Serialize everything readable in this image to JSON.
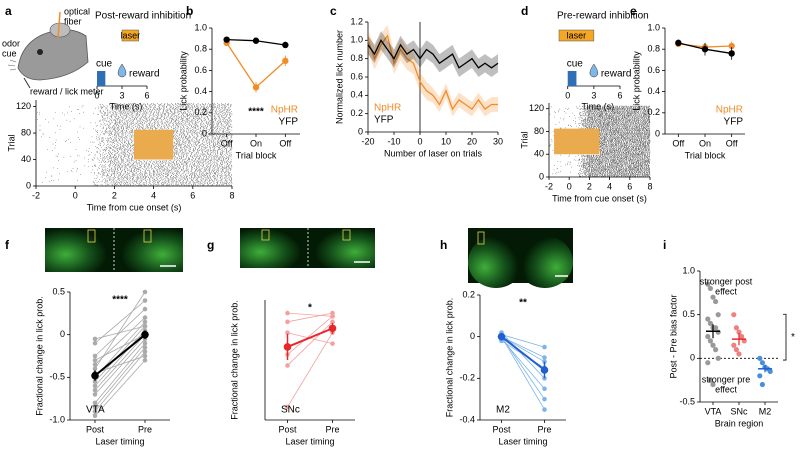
{
  "panel_labels": [
    "a",
    "b",
    "c",
    "d",
    "e",
    "f",
    "g",
    "h",
    "i"
  ],
  "illustration": {
    "fiber": [
      "optical",
      "fiber"
    ],
    "cue": [
      "odor",
      "cue"
    ],
    "meter": "reward / lick meter"
  },
  "chart_data": [
    {
      "type": "timeline",
      "title": "Post-reward inhibition",
      "xlim": [
        0,
        6
      ],
      "xticks": [
        0,
        3,
        6
      ],
      "xlabel": "Time (s)",
      "events": [
        {
          "label": "cue",
          "x": [
            0,
            1
          ],
          "color": "#2f6fb5"
        },
        {
          "label": "laser",
          "x": [
            3,
            5
          ],
          "color": "#f5a623"
        },
        {
          "label": "reward",
          "x": [
            3
          ],
          "color": "#7fb8e6"
        }
      ]
    },
    {
      "type": "raster",
      "xlabel": "Time from cue onset (s)",
      "ylabel": "Trial",
      "xlim": [
        -2,
        8
      ],
      "ylim": [
        0,
        130
      ],
      "xticks": [
        -2,
        0,
        2,
        4,
        6,
        8
      ],
      "yticks": [
        0,
        40,
        80,
        120
      ],
      "laser": {
        "x": [
          3,
          5
        ],
        "y": [
          40,
          85
        ],
        "color": "#e8a23c"
      }
    },
    {
      "type": "line",
      "xlabel": "Trial block",
      "ylabel": "Lick probability",
      "categories": [
        "Off",
        "On",
        "Off"
      ],
      "ylim": [
        0,
        1
      ],
      "yticks": [
        0,
        0.2,
        0.4,
        0.6,
        0.8,
        {
          "value": 1,
          "label": "1.0"
        }
      ],
      "legend": "lower right",
      "annotation": "****",
      "series": [
        {
          "name": "NpHR",
          "color": "#f28c28",
          "values": [
            0.86,
            0.44,
            0.69
          ],
          "errors": [
            0.03,
            0.05,
            0.05
          ]
        },
        {
          "name": "YFP",
          "color": "#000000",
          "values": [
            0.89,
            0.88,
            0.84
          ],
          "errors": [
            0.02,
            0.03,
            0.03
          ]
        }
      ]
    },
    {
      "type": "line",
      "xlabel": "Number of laser on trials",
      "ylabel": "Normalized lick number",
      "x": [
        -20,
        -17.5,
        -15,
        -12.5,
        -10,
        -7.5,
        -5,
        -2.5,
        0,
        2.5,
        5,
        7.5,
        10,
        12.5,
        15,
        17.5,
        20,
        22.5,
        25,
        27.5,
        30
      ],
      "xlim": [
        -20,
        30
      ],
      "xticks": [
        -20,
        -10,
        0,
        10,
        20,
        30
      ],
      "ylim": [
        0,
        1.2
      ],
      "yticks": [
        0,
        0.2,
        0.4,
        0.6,
        0.8,
        {
          "value": 1,
          "label": "1.0"
        },
        1.2
      ],
      "vline": 0,
      "legend": "lower left",
      "series": [
        {
          "name": "NpHR",
          "color": "#f28c28",
          "values": [
            1.0,
            0.8,
            0.95,
            1.05,
            0.75,
            0.9,
            0.8,
            0.75,
            0.55,
            0.45,
            0.4,
            0.3,
            0.45,
            0.25,
            0.35,
            0.3,
            0.25,
            0.35,
            0.25,
            0.3,
            0.3
          ],
          "errors": [
            0.12,
            0.12,
            0.12,
            0.12,
            0.12,
            0.12,
            0.12,
            0.12,
            0.1,
            0.1,
            0.08,
            0.08,
            0.08,
            0.08,
            0.08,
            0.08,
            0.08,
            0.08,
            0.08,
            0.08,
            0.08
          ]
        },
        {
          "name": "YFP",
          "color": "#000000",
          "values": [
            0.95,
            0.85,
            1.0,
            0.9,
            0.8,
            0.95,
            0.85,
            0.9,
            0.8,
            0.9,
            0.85,
            0.75,
            0.8,
            0.85,
            0.7,
            0.75,
            0.8,
            0.7,
            0.75,
            0.7,
            0.75
          ],
          "errors": [
            0.1,
            0.1,
            0.1,
            0.1,
            0.1,
            0.1,
            0.1,
            0.1,
            0.1,
            0.1,
            0.1,
            0.1,
            0.1,
            0.1,
            0.1,
            0.1,
            0.1,
            0.1,
            0.1,
            0.1,
            0.1
          ]
        }
      ]
    },
    {
      "type": "timeline",
      "title": "Pre-reward inhibition",
      "xlim": [
        -1,
        6
      ],
      "xticks": [
        0,
        3,
        6
      ],
      "xlabel": "Time (s)",
      "events": [
        {
          "label": "cue",
          "x": [
            0,
            1
          ],
          "color": "#2f6fb5"
        },
        {
          "label": "laser",
          "x": [
            -1,
            3
          ],
          "color": "#f5a623"
        },
        {
          "label": "reward",
          "x": [
            3
          ],
          "color": "#7fb8e6"
        }
      ]
    },
    {
      "type": "raster",
      "xlabel": "Time from cue onset (s)",
      "ylabel": "Trial",
      "xlim": [
        -2,
        8
      ],
      "ylim": [
        0,
        130
      ],
      "xticks": [
        -2,
        0,
        2,
        4,
        6,
        8
      ],
      "yticks": [
        0,
        40,
        80,
        120
      ],
      "laser": {
        "x": [
          -1.5,
          3
        ],
        "y": [
          40,
          85
        ],
        "color": "#e8a23c"
      }
    },
    {
      "type": "line",
      "xlabel": "Trial block",
      "ylabel": "Lick probability",
      "categories": [
        "Off",
        "On",
        "Off"
      ],
      "ylim": [
        0,
        1
      ],
      "yticks": [
        0,
        0.2,
        0.4,
        0.6,
        0.8,
        {
          "value": 1,
          "label": "1.0"
        }
      ],
      "legend": "lower right",
      "series": [
        {
          "name": "NpHR",
          "color": "#f28c28",
          "values": [
            0.85,
            0.82,
            0.83
          ],
          "errors": [
            0.02,
            0.04,
            0.04
          ]
        },
        {
          "name": "YFP",
          "color": "#000000",
          "values": [
            0.86,
            0.8,
            0.76
          ],
          "errors": [
            0.03,
            0.06,
            0.06
          ]
        }
      ]
    },
    {
      "type": "paired",
      "xlabel": "Laser timing",
      "ylabel": "Fractional change in lick prob.",
      "categories": [
        "Post",
        "Pre"
      ],
      "ylim": [
        -1,
        0.5
      ],
      "yticks": [
        {
          "value": -1,
          "label": "-1.0"
        },
        -0.5,
        0,
        0.5
      ],
      "annotation": "****",
      "region": "VTA",
      "series": [
        {
          "color": "#aaaaaa",
          "values": [
            -0.95,
            -0.3
          ]
        },
        {
          "color": "#aaaaaa",
          "values": [
            -0.9,
            -0.2
          ]
        },
        {
          "color": "#aaaaaa",
          "values": [
            -0.85,
            -0.15
          ]
        },
        {
          "color": "#aaaaaa",
          "values": [
            -0.8,
            -0.1
          ]
        },
        {
          "color": "#aaaaaa",
          "values": [
            -0.7,
            -0.05
          ]
        },
        {
          "color": "#aaaaaa",
          "values": [
            -0.65,
            0
          ]
        },
        {
          "color": "#aaaaaa",
          "values": [
            -0.6,
            0.05
          ]
        },
        {
          "color": "#aaaaaa",
          "values": [
            -0.55,
            0.1
          ]
        },
        {
          "color": "#aaaaaa",
          "values": [
            -0.5,
            0.15
          ]
        },
        {
          "color": "#aaaaaa",
          "values": [
            -0.45,
            -0.25
          ]
        },
        {
          "color": "#aaaaaa",
          "values": [
            -0.4,
            0.5
          ]
        },
        {
          "color": "#aaaaaa",
          "values": [
            -0.35,
            0.2
          ]
        },
        {
          "color": "#aaaaaa",
          "values": [
            -0.3,
            0
          ]
        },
        {
          "color": "#aaaaaa",
          "values": [
            -0.25,
            0.3
          ]
        },
        {
          "color": "#aaaaaa",
          "values": [
            -0.1,
            0.4
          ]
        },
        {
          "color": "#aaaaaa",
          "values": [
            -0.05,
            0.1
          ]
        }
      ],
      "mean": {
        "color": "#000000",
        "values": [
          -0.48,
          0
        ],
        "errors": [
          0.06,
          0.05
        ]
      }
    },
    {
      "type": "paired",
      "xlabel": "Laser timing",
      "ylabel": "Fractional change in lick prob.",
      "categories": [
        "Post",
        "Pre"
      ],
      "ylim": [
        -1,
        0.1
      ],
      "annotation": "*",
      "region": "SNc",
      "series": [
        {
          "color": "#f4a0a0",
          "values": [
            -0.88,
            -0.2
          ]
        },
        {
          "color": "#f4a0a0",
          "values": [
            -0.5,
            -0.1
          ]
        },
        {
          "color": "#f4a0a0",
          "values": [
            -0.4,
            -0.05
          ]
        },
        {
          "color": "#f4a0a0",
          "values": [
            -0.2,
            -0.3
          ]
        },
        {
          "color": "#f4a0a0",
          "values": [
            -0.1,
            -0.02
          ]
        },
        {
          "color": "#f4a0a0",
          "values": [
            -0.02,
            -0.05
          ]
        }
      ],
      "mean": {
        "color": "#e8262b",
        "values": [
          -0.33,
          -0.16
        ],
        "errors": [
          0.12,
          0.05
        ]
      }
    },
    {
      "type": "paired",
      "xlabel": "Laser timing",
      "ylabel": "Fractional change in lick prob.",
      "categories": [
        "Post",
        "Pre"
      ],
      "ylim": [
        -0.4,
        0.2
      ],
      "yticks": [
        -0.4,
        -0.2,
        0,
        0.2
      ],
      "annotation": "**",
      "region": "M2",
      "series": [
        {
          "color": "#7db4ea",
          "values": [
            0,
            -0.35
          ]
        },
        {
          "color": "#7db4ea",
          "values": [
            0,
            -0.3
          ]
        },
        {
          "color": "#7db4ea",
          "values": [
            0.02,
            -0.2
          ]
        },
        {
          "color": "#7db4ea",
          "values": [
            -0.02,
            -0.15
          ]
        },
        {
          "color": "#7db4ea",
          "values": [
            0,
            -0.1
          ]
        },
        {
          "color": "#7db4ea",
          "values": [
            0.01,
            -0.05
          ]
        },
        {
          "color": "#7db4ea",
          "values": [
            0,
            -0.12
          ]
        },
        {
          "color": "#7db4ea",
          "values": [
            -0.01,
            -0.25
          ]
        }
      ],
      "mean": {
        "color": "#1f5fd0",
        "values": [
          0,
          -0.16
        ],
        "errors": [
          0.01,
          0.04
        ]
      }
    },
    {
      "type": "strip",
      "xlabel": "Brain region",
      "ylabel": "Post - Pre bias factor",
      "categories": [
        "VTA",
        "SNc",
        "M2"
      ],
      "ylim": [
        -0.5,
        1
      ],
      "yticks": [
        -0.5,
        0,
        0.5,
        {
          "value": 1,
          "label": "1.0"
        }
      ],
      "hline": 0,
      "upper_note": [
        "stronger post",
        "effect"
      ],
      "lower_note": [
        "stronger pre",
        "effect"
      ],
      "sig": "*",
      "groups": [
        {
          "color": "#999999",
          "values": [
            0.85,
            0.8,
            0.7,
            0.65,
            0.5,
            0.45,
            0.4,
            0.35,
            0.35,
            0.3,
            0.25,
            0.2,
            0.15,
            0.1,
            0,
            -0.05,
            -0.25,
            -0.3
          ],
          "mean": 0.31,
          "error": 0.08,
          "mean_color": "#000000"
        },
        {
          "color": "#f08080",
          "values": [
            0.5,
            0.35,
            0.3,
            0.25,
            0.2,
            0.15,
            0.1,
            0.05
          ],
          "mean": 0.22,
          "error": 0.07,
          "mean_color": "#e8262b"
        },
        {
          "color": "#4a90d9",
          "values": [
            0,
            -0.05,
            -0.1,
            -0.12,
            -0.15,
            -0.2,
            -0.3
          ],
          "mean": -0.12,
          "error": 0.04,
          "mean_color": "#1f5fd0"
        }
      ]
    }
  ]
}
